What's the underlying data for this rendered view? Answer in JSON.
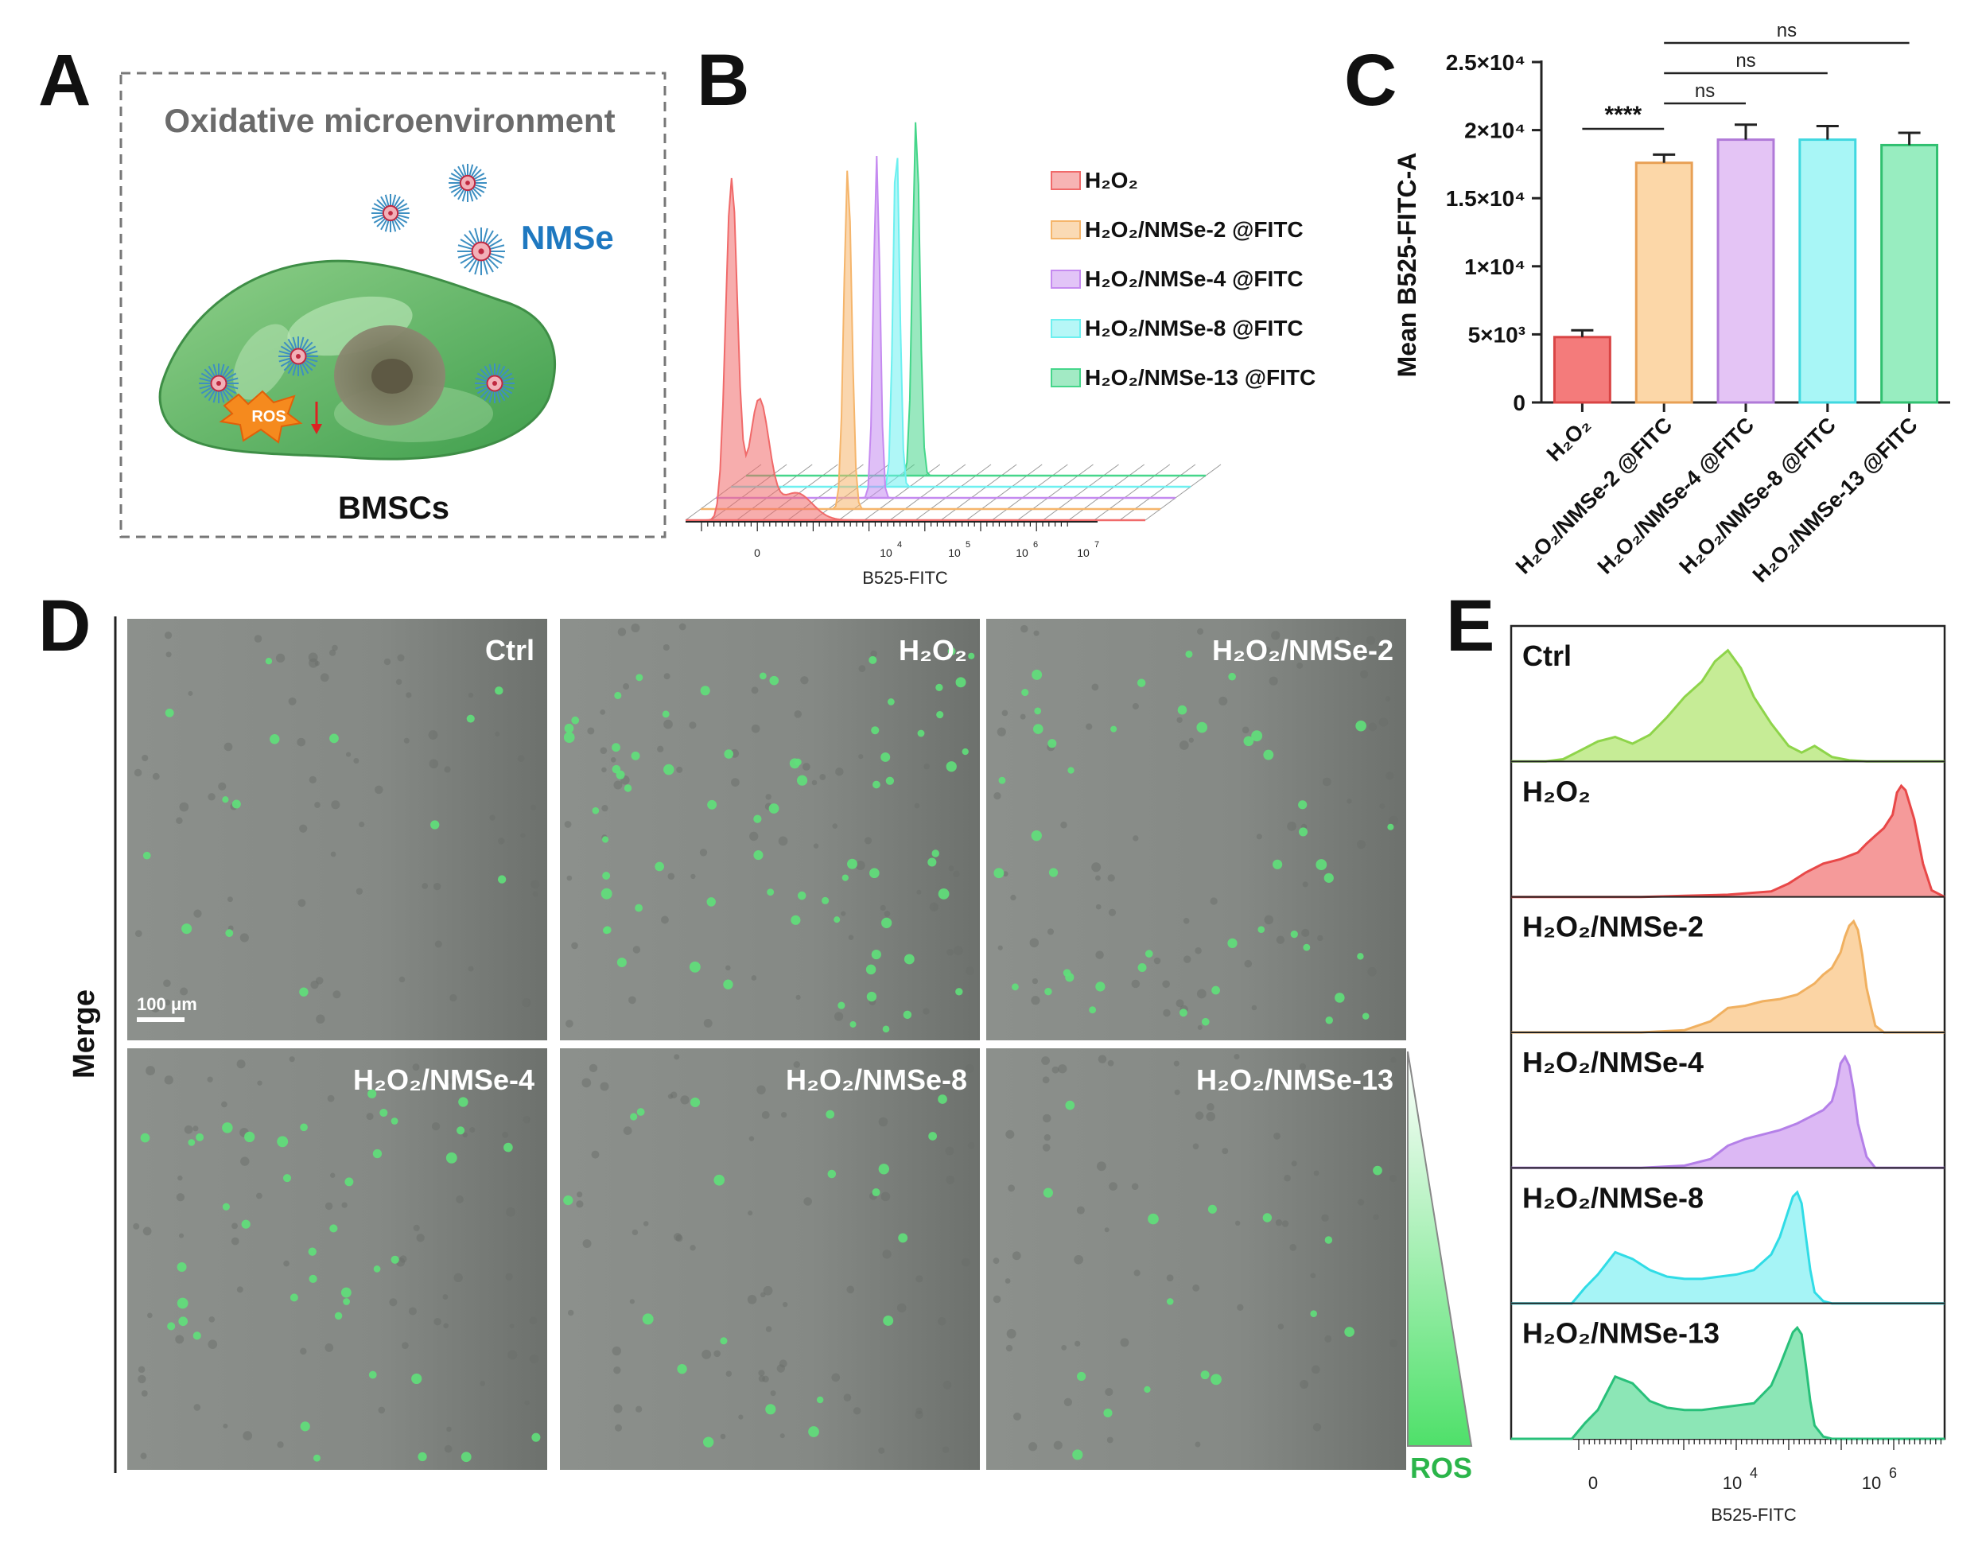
{
  "panels": {
    "A": "A",
    "B": "B",
    "C": "C",
    "D": "D",
    "E": "E"
  },
  "panel_a": {
    "title": "Oxidative microenvironment",
    "nmse_label": "NMSe",
    "ros_label": "ROS",
    "cell_label": "BMSCs"
  },
  "panel_b": {
    "xlabel": "B525-FITC",
    "ticks": [
      "0",
      "10",
      "10",
      "10",
      "10"
    ],
    "tick_exps": [
      "",
      "4",
      "5",
      "6",
      "7"
    ],
    "legend": [
      {
        "label": "H₂O₂",
        "color": "#f06a6a"
      },
      {
        "label": "H₂O₂/NMSe-2 @FITC",
        "color": "#f5b56b"
      },
      {
        "label": "H₂O₂/NMSe-4 @FITC",
        "color": "#c58af0"
      },
      {
        "label": "H₂O₂/NMSe-8 @FITC",
        "color": "#6df0f0"
      },
      {
        "label": "H₂O₂/NMSe-13 @FITC",
        "color": "#45d68a"
      }
    ]
  },
  "chart_data": [
    {
      "type": "bar",
      "panel": "C",
      "ylabel": "Mean B525-FITC-A",
      "categories": [
        "H₂O₂",
        "H₂O₂/NMSe-2 @FITC",
        "H₂O₂/NMSe-4 @FITC",
        "H₂O₂/NMSe-8 @FITC",
        "H₂O₂/NMSe-13 @FITC"
      ],
      "values": [
        4800,
        17600,
        19300,
        19300,
        18900
      ],
      "errors": [
        500,
        600,
        1100,
        1000,
        900
      ],
      "ylim": [
        0,
        25000
      ],
      "yticks": [
        "0",
        "5×10³",
        "1×10⁴",
        "1.5×10⁴",
        "2×10⁴",
        "2.5×10⁴"
      ],
      "ytick_values": [
        0,
        5000,
        10000,
        15000,
        20000,
        25000
      ],
      "bar_fill": [
        "#f47b7b",
        "#fcd7a8",
        "#e4c4f5",
        "#a8f6f6",
        "#98edc0"
      ],
      "bar_stroke": [
        "#d94444",
        "#e8a055",
        "#b07ad8",
        "#40d8e0",
        "#30c070"
      ],
      "significance": [
        {
          "from": 0,
          "to": 1,
          "label": "****"
        },
        {
          "from": 1,
          "to": 2,
          "label": "ns"
        },
        {
          "from": 1,
          "to": 3,
          "label": "ns"
        },
        {
          "from": 1,
          "to": 4,
          "label": "ns"
        }
      ]
    },
    {
      "type": "area",
      "panel": "E",
      "xlabel": "B525-FITC",
      "xticks": [
        "0",
        "10",
        "10"
      ],
      "xtick_exps": [
        "",
        "4",
        "6"
      ],
      "series": [
        {
          "name": "Ctrl",
          "color": "#8ed44a",
          "fill": "#c6ec96",
          "x": [
            0,
            8,
            12,
            16,
            20,
            24,
            28,
            32,
            36,
            40,
            44,
            47,
            50,
            53,
            56,
            60,
            64,
            67,
            70,
            74,
            78,
            82,
            86,
            90,
            100
          ],
          "y": [
            0,
            0,
            2,
            10,
            18,
            22,
            16,
            24,
            40,
            58,
            72,
            90,
            100,
            84,
            58,
            34,
            14,
            8,
            14,
            4,
            1,
            0,
            0,
            0,
            0
          ]
        },
        {
          "name": "H₂O₂",
          "color": "#e84848",
          "fill": "#f59a9a",
          "x": [
            0,
            30,
            40,
            50,
            60,
            64,
            68,
            72,
            76,
            80,
            82,
            84,
            86,
            88,
            89,
            90,
            91,
            93,
            95,
            97,
            100
          ],
          "y": [
            0,
            0,
            1,
            2,
            5,
            12,
            22,
            30,
            34,
            40,
            48,
            55,
            62,
            74,
            94,
            100,
            96,
            70,
            30,
            6,
            0
          ]
        },
        {
          "name": "H₂O₂/NMSe-2",
          "color": "#f0b060",
          "fill": "#fbd4a4",
          "x": [
            0,
            30,
            40,
            46,
            50,
            54,
            58,
            62,
            66,
            70,
            72,
            74,
            76,
            77,
            78,
            79,
            80,
            81,
            82,
            84,
            86,
            100
          ],
          "y": [
            0,
            0,
            2,
            10,
            22,
            24,
            28,
            30,
            34,
            44,
            52,
            58,
            72,
            86,
            96,
            100,
            92,
            70,
            40,
            6,
            0,
            0
          ]
        },
        {
          "name": "H₂O₂/NMSe-4",
          "color": "#b480e8",
          "fill": "#dcb8f4",
          "x": [
            0,
            30,
            40,
            46,
            50,
            54,
            58,
            62,
            66,
            70,
            72,
            74,
            75,
            76,
            77,
            78,
            79,
            80,
            82,
            84,
            100
          ],
          "y": [
            0,
            0,
            2,
            8,
            20,
            26,
            30,
            34,
            40,
            48,
            52,
            60,
            74,
            94,
            100,
            92,
            70,
            40,
            10,
            0,
            0
          ]
        },
        {
          "name": "H₂O₂/NMSe-8",
          "color": "#30dce6",
          "fill": "#a6f4f6",
          "x": [
            0,
            14,
            17,
            20,
            24,
            28,
            32,
            36,
            40,
            44,
            48,
            52,
            56,
            60,
            62,
            64,
            65,
            66,
            67,
            68,
            69,
            70,
            72,
            74,
            100
          ],
          "y": [
            0,
            0,
            14,
            26,
            46,
            40,
            30,
            24,
            22,
            22,
            24,
            26,
            30,
            44,
            60,
            84,
            96,
            100,
            90,
            60,
            30,
            10,
            2,
            0,
            0
          ]
        },
        {
          "name": "H₂O₂/NMSe-13",
          "color": "#28c07a",
          "fill": "#8ce6b6",
          "x": [
            0,
            14,
            17,
            20,
            24,
            28,
            32,
            36,
            40,
            44,
            48,
            52,
            56,
            60,
            62,
            64,
            65,
            66,
            67,
            68,
            69,
            70,
            72,
            74,
            100
          ],
          "y": [
            0,
            0,
            14,
            26,
            56,
            50,
            34,
            28,
            26,
            26,
            28,
            30,
            32,
            48,
            66,
            86,
            96,
            100,
            94,
            66,
            34,
            12,
            2,
            0,
            0
          ]
        }
      ],
      "labels": [
        "Ctrl",
        "H₂O₂",
        "H₂O₂/NMSe-2",
        "H₂O₂/NMSe-4",
        "H₂O₂/NMSe-8",
        "H₂O₂/NMSe-13"
      ]
    }
  ],
  "panel_d": {
    "side_label": "Merge",
    "scale_bar": "100 μm",
    "ros_label": "ROS",
    "images": [
      {
        "label": "Ctrl",
        "dots": 14
      },
      {
        "label": "H₂O₂",
        "dots": 70
      },
      {
        "label": "H₂O₂/NMSe-2",
        "dots": 45
      },
      {
        "label": "H₂O₂/NMSe-4",
        "dots": 40
      },
      {
        "label": "H₂O₂/NMSe-8",
        "dots": 20
      },
      {
        "label": "H₂O₂/NMSe-13",
        "dots": 16
      }
    ]
  }
}
